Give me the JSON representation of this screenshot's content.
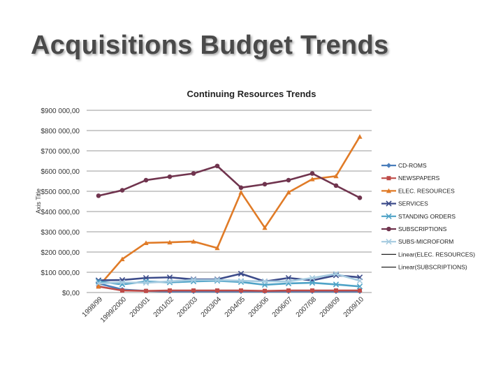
{
  "slide": {
    "title": "Acquisitions Budget Trends"
  },
  "chart_data": {
    "type": "line",
    "title": "Continuing Resources Trends",
    "ylabel": "Axis Title",
    "xlabel": "",
    "ylim": [
      0,
      900000
    ],
    "yticks": [
      0,
      100000,
      200000,
      300000,
      400000,
      500000,
      600000,
      700000,
      800000,
      900000
    ],
    "ytick_labels": [
      "$0,00",
      "$100 000,00",
      "$200 000,00",
      "$300 000,00",
      "$400 000,00",
      "$500 000,00",
      "$600 000,00",
      "$700 000,00",
      "$800 000,00",
      "$900 000,00"
    ],
    "grid": true,
    "legend_position": "right",
    "categories": [
      "1998/99",
      "1999/2000",
      "2000/01",
      "2001/02",
      "2002/03",
      "2003/04",
      "2004/05",
      "2005/06",
      "2006/07",
      "2007/08",
      "2008/09",
      "2009/10"
    ],
    "series": [
      {
        "name": "CD-ROMS",
        "color": "#4a7ebb",
        "marker": "diamond",
        "values": [
          45000,
          15000,
          8000,
          5000,
          5000,
          5000,
          5000,
          5000,
          5000,
          5000,
          5000,
          5000
        ]
      },
      {
        "name": "NEWSPAPERS",
        "color": "#be4b48",
        "marker": "square",
        "values": [
          30000,
          10000,
          8000,
          10000,
          10000,
          10000,
          10000,
          8000,
          10000,
          10000,
          10000,
          10000
        ]
      },
      {
        "name": "ELEC. RESOURCES",
        "color": "#e07b27",
        "marker": "triangle",
        "values": [
          30000,
          165000,
          245000,
          248000,
          252000,
          220000,
          495000,
          320000,
          495000,
          560000,
          575000,
          770000
        ]
      },
      {
        "name": "SERVICES",
        "color": "#3c4b8a",
        "marker": "x",
        "values": [
          60000,
          62000,
          72000,
          75000,
          65000,
          65000,
          93000,
          55000,
          72000,
          60000,
          85000,
          75000
        ]
      },
      {
        "name": "STANDING ORDERS",
        "color": "#4fa3c7",
        "marker": "x",
        "values": [
          55000,
          40000,
          55000,
          50000,
          55000,
          58000,
          52000,
          38000,
          45000,
          48000,
          40000,
          30000
        ]
      },
      {
        "name": "SUBSCRIPTIONS",
        "color": "#70344e",
        "marker": "circle",
        "values": [
          478000,
          505000,
          555000,
          572000,
          588000,
          625000,
          518000,
          535000,
          555000,
          588000,
          528000,
          468000
        ]
      },
      {
        "name": "SUBS-MICROFORM",
        "color": "#a6cbe0",
        "marker": "x",
        "values": [
          45000,
          50000,
          48000,
          55000,
          62000,
          62000,
          58000,
          55000,
          55000,
          72000,
          92000,
          58000
        ]
      }
    ],
    "legend_extra": [
      {
        "name": "Linear(ELEC. RESOURCES)",
        "color": "#222222"
      },
      {
        "name": "Linear(SUBSCRIPTIONS)",
        "color": "#222222"
      }
    ]
  }
}
